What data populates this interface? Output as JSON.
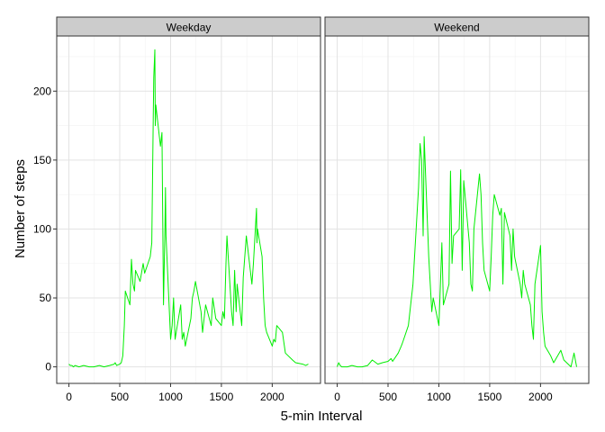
{
  "chart_data": {
    "type": "line",
    "xlabel": "5-min Interval",
    "ylabel": "Number of steps",
    "xlim": [
      -120,
      2475
    ],
    "ylim": [
      -12,
      240
    ],
    "x_ticks": [
      0,
      500,
      1000,
      1500,
      2000
    ],
    "y_ticks": [
      0,
      50,
      100,
      150,
      200
    ],
    "grid": true,
    "line_color": "#00ee00",
    "panel_strip_color": "#cccccc",
    "panels": [
      {
        "label": "Weekday",
        "x": [
          0,
          15,
          30,
          45,
          60,
          100,
          145,
          200,
          245,
          300,
          345,
          400,
          445,
          455,
          470,
          500,
          515,
          530,
          545,
          555,
          600,
          615,
          630,
          645,
          655,
          700,
          730,
          745,
          800,
          815,
          830,
          835,
          845,
          850,
          855,
          900,
          915,
          930,
          945,
          950,
          955,
          1000,
          1015,
          1030,
          1045,
          1055,
          1100,
          1115,
          1130,
          1145,
          1200,
          1215,
          1230,
          1245,
          1300,
          1315,
          1330,
          1345,
          1400,
          1415,
          1445,
          1500,
          1515,
          1530,
          1545,
          1555,
          1600,
          1615,
          1630,
          1645,
          1655,
          1700,
          1715,
          1730,
          1745,
          1800,
          1815,
          1830,
          1845,
          1850,
          1855,
          1900,
          1915,
          1930,
          1945,
          2000,
          2015,
          2030,
          2045,
          2100,
          2130,
          2200,
          2230,
          2300,
          2330,
          2355
        ],
        "y": [
          2,
          1,
          1,
          0,
          1,
          0,
          1,
          0,
          0,
          1,
          0,
          1,
          2,
          3,
          1,
          2,
          3,
          8,
          30,
          55,
          45,
          78,
          60,
          55,
          70,
          62,
          75,
          68,
          80,
          90,
          185,
          210,
          230,
          175,
          190,
          160,
          170,
          45,
          100,
          130,
          95,
          20,
          30,
          50,
          20,
          25,
          45,
          20,
          25,
          15,
          35,
          50,
          55,
          62,
          40,
          25,
          35,
          45,
          30,
          50,
          35,
          30,
          40,
          35,
          75,
          95,
          40,
          30,
          70,
          40,
          60,
          30,
          65,
          80,
          95,
          60,
          75,
          95,
          115,
          90,
          100,
          80,
          50,
          30,
          25,
          15,
          20,
          18,
          30,
          25,
          10,
          5,
          3,
          2,
          1,
          2
        ]
      },
      {
        "label": "Weekend",
        "x": [
          0,
          15,
          30,
          45,
          100,
          145,
          200,
          245,
          300,
          345,
          400,
          445,
          500,
          530,
          545,
          600,
          630,
          645,
          700,
          715,
          745,
          800,
          815,
          830,
          845,
          850,
          855,
          900,
          915,
          930,
          945,
          1000,
          1015,
          1030,
          1045,
          1100,
          1115,
          1130,
          1145,
          1200,
          1215,
          1230,
          1245,
          1300,
          1315,
          1330,
          1345,
          1400,
          1415,
          1430,
          1445,
          1500,
          1515,
          1530,
          1545,
          1600,
          1615,
          1630,
          1645,
          1700,
          1715,
          1730,
          1745,
          1800,
          1815,
          1830,
          1845,
          1900,
          1915,
          1930,
          1945,
          2000,
          2015,
          2030,
          2045,
          2100,
          2130,
          2200,
          2230,
          2300,
          2330,
          2355
        ],
        "y": [
          0,
          3,
          1,
          0,
          0,
          1,
          0,
          0,
          1,
          5,
          2,
          3,
          4,
          6,
          4,
          10,
          15,
          18,
          30,
          40,
          60,
          130,
          162,
          150,
          95,
          120,
          167,
          80,
          60,
          40,
          50,
          30,
          60,
          90,
          45,
          60,
          142,
          75,
          95,
          100,
          143,
          70,
          135,
          90,
          60,
          55,
          100,
          140,
          125,
          90,
          70,
          55,
          80,
          110,
          125,
          110,
          115,
          60,
          112,
          95,
          70,
          100,
          80,
          60,
          50,
          70,
          60,
          45,
          30,
          20,
          60,
          88,
          40,
          25,
          15,
          8,
          3,
          12,
          5,
          0,
          10,
          0
        ]
      }
    ]
  }
}
